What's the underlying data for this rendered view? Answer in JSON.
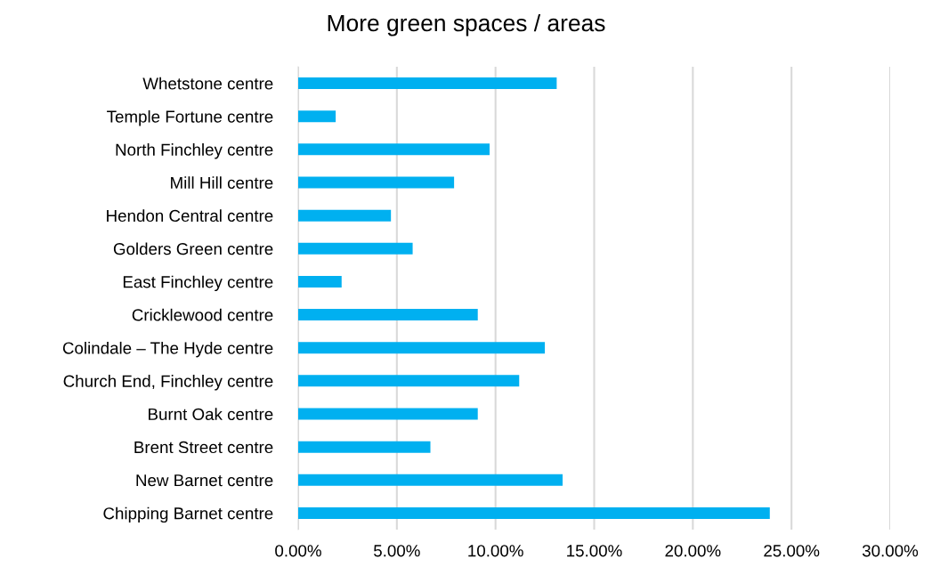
{
  "chart_data": {
    "type": "bar",
    "orientation": "horizontal",
    "title": "More green spaces / areas",
    "categories": [
      "Whetstone centre",
      "Temple Fortune centre",
      "North Finchley centre",
      "Mill Hill centre",
      "Hendon Central centre",
      "Golders Green centre",
      "East Finchley centre",
      "Cricklewood centre",
      "Colindale – The Hyde centre",
      "Church End, Finchley centre",
      "Burnt Oak centre",
      "Brent Street centre",
      "New Barnet centre",
      "Chipping Barnet centre"
    ],
    "values": [
      13.1,
      1.9,
      9.7,
      7.9,
      4.7,
      5.8,
      2.2,
      9.1,
      12.5,
      11.2,
      9.1,
      6.7,
      13.4,
      23.9
    ],
    "color": "#00b0f0",
    "xlim": [
      0,
      30
    ],
    "xticks": [
      {
        "value": 0,
        "label": "0.00%"
      },
      {
        "value": 5,
        "label": "5.00%"
      },
      {
        "value": 10,
        "label": "10.00%"
      },
      {
        "value": 15,
        "label": "15.00%"
      },
      {
        "value": 20,
        "label": "20.00%"
      },
      {
        "value": 25,
        "label": "25.00%"
      },
      {
        "value": 30,
        "label": "30.00%"
      }
    ],
    "grid": "x"
  }
}
